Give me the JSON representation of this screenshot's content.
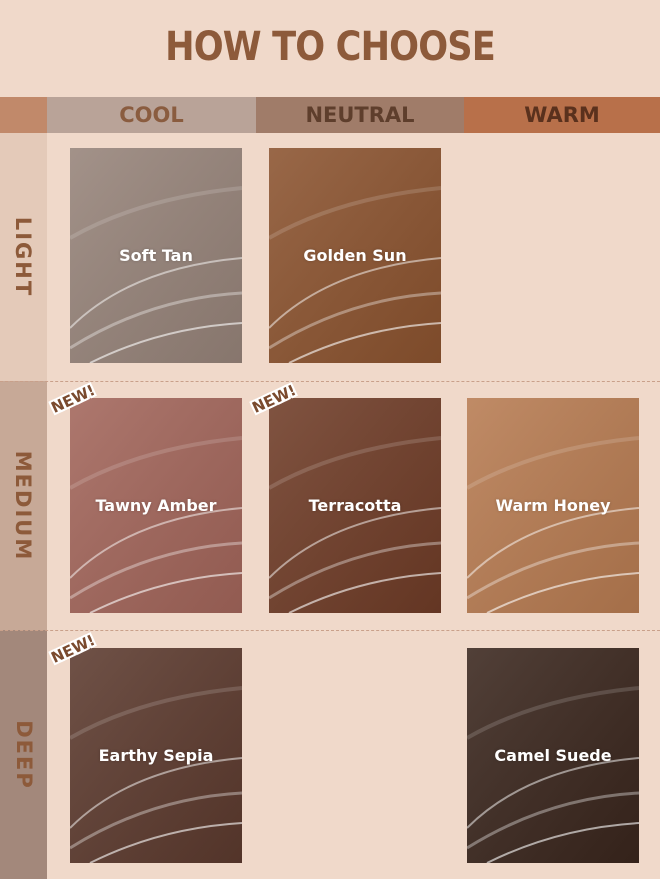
{
  "title": "HOW TO CHOOSE",
  "columns": [
    {
      "label": "COOL",
      "bg": "#b9a398",
      "color": "#8a5c3f"
    },
    {
      "label": "NEUTRAL",
      "bg": "#a07c69",
      "color": "#5e3e2c"
    },
    {
      "label": "WARM",
      "bg": "#b8704a",
      "color": "#5a311d"
    }
  ],
  "rows": [
    {
      "label": "LIGHT",
      "bg": "#e4cab9"
    },
    {
      "label": "MEDIUM",
      "bg": "#c7a997"
    },
    {
      "label": "DEEP",
      "bg": "#a3887b"
    }
  ],
  "badge": "NEW!",
  "shades": {
    "soft_tan": {
      "name": "Soft Tan",
      "color": "#968379"
    },
    "golden_sun": {
      "name": "Golden Sun",
      "color": "#8b532f"
    },
    "tawny_amber": {
      "name": "Tawny Amber",
      "color": "#a2655a"
    },
    "terracotta": {
      "name": "Terracotta",
      "color": "#6f3c27"
    },
    "warm_honey": {
      "name": "Warm Honey",
      "color": "#b77b51"
    },
    "earthy_sepia": {
      "name": "Earthy Sepia",
      "color": "#5c3a2e"
    },
    "camel_suede": {
      "name": "Camel Suede",
      "color": "#3a261d"
    }
  }
}
